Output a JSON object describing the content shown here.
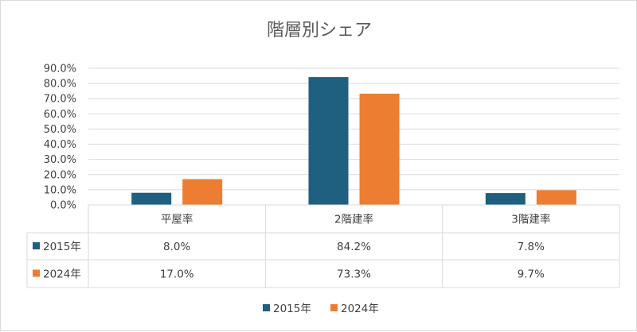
{
  "chart_data": {
    "type": "bar",
    "title": "階層別シェア",
    "categories": [
      "平屋率",
      "2階建率",
      "3階建率"
    ],
    "series": [
      {
        "name": "2015年",
        "color": "#1f5f7f",
        "values": [
          8.0,
          84.2,
          7.8
        ],
        "labels": [
          "8.0%",
          "84.2%",
          "7.8%"
        ]
      },
      {
        "name": "2024年",
        "color": "#ed7d31",
        "values": [
          17.0,
          73.3,
          9.7
        ],
        "labels": [
          "17.0%",
          "73.3%",
          "9.7%"
        ]
      }
    ],
    "ylim": [
      0,
      90
    ],
    "yticks": [
      "0.0%",
      "10.0%",
      "20.0%",
      "30.0%",
      "40.0%",
      "50.0%",
      "60.0%",
      "70.0%",
      "80.0%",
      "90.0%"
    ],
    "grid": true,
    "data_table": true,
    "legend_position": "bottom"
  }
}
